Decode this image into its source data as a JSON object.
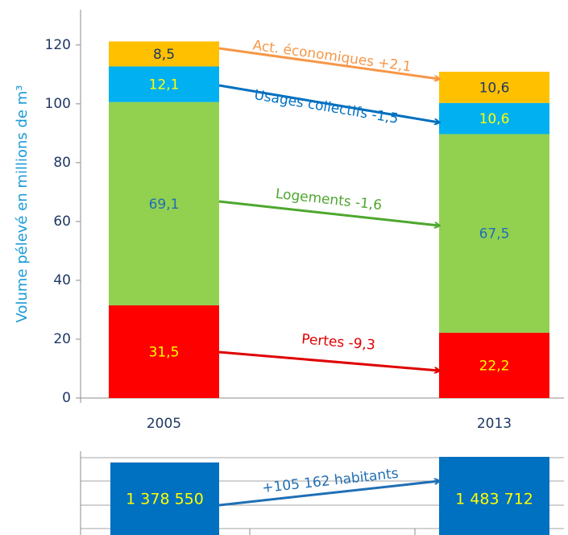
{
  "chart_data": [
    {
      "type": "stacked-bar",
      "y_label": "Volume pélevé en millions de m³",
      "categories": [
        "2005",
        "2013"
      ],
      "ylim": [
        0,
        132
      ],
      "yticks": [
        0,
        20,
        40,
        60,
        80,
        100,
        120
      ],
      "series": [
        {
          "color": "#ff0000",
          "values": [
            31.5,
            22.2
          ],
          "value_labels": [
            "31,5",
            "22,2"
          ],
          "label_colors": [
            "#ffff00",
            "#ffff00"
          ],
          "annotation": "Pertes -9,3",
          "annotation_color": "#e00000"
        },
        {
          "color": "#92d050",
          "values": [
            69.1,
            67.5
          ],
          "value_labels": [
            "69,1",
            "67,5"
          ],
          "label_colors": [
            "#1f6fb5",
            "#1f6fb5"
          ],
          "annotation": "Logements -1,6",
          "annotation_color": "#4ea72e"
        },
        {
          "color": "#00b0f0",
          "values": [
            12.1,
            10.6
          ],
          "value_labels": [
            "12,1",
            "10,6"
          ],
          "label_colors": [
            "#ffff00",
            "#ffff00"
          ],
          "annotation": "Usages collectifs -1,5",
          "annotation_color": "#0070c0"
        },
        {
          "color": "#ffc000",
          "values": [
            8.5,
            10.6
          ],
          "value_labels": [
            "8,5",
            "10,6"
          ],
          "label_colors": [
            "#1f3864",
            "#1f3864"
          ],
          "annotation": "Act. économiques +2,1",
          "annotation_color": "#f79646"
        }
      ]
    },
    {
      "type": "boxes",
      "color": "#0070c0",
      "values": [
        1378550,
        1483712
      ],
      "value_labels": [
        "1 378 550",
        "1 483 712"
      ],
      "annotation": "+105 162 habitants",
      "annotation_color": "#1f6fb5"
    }
  ]
}
